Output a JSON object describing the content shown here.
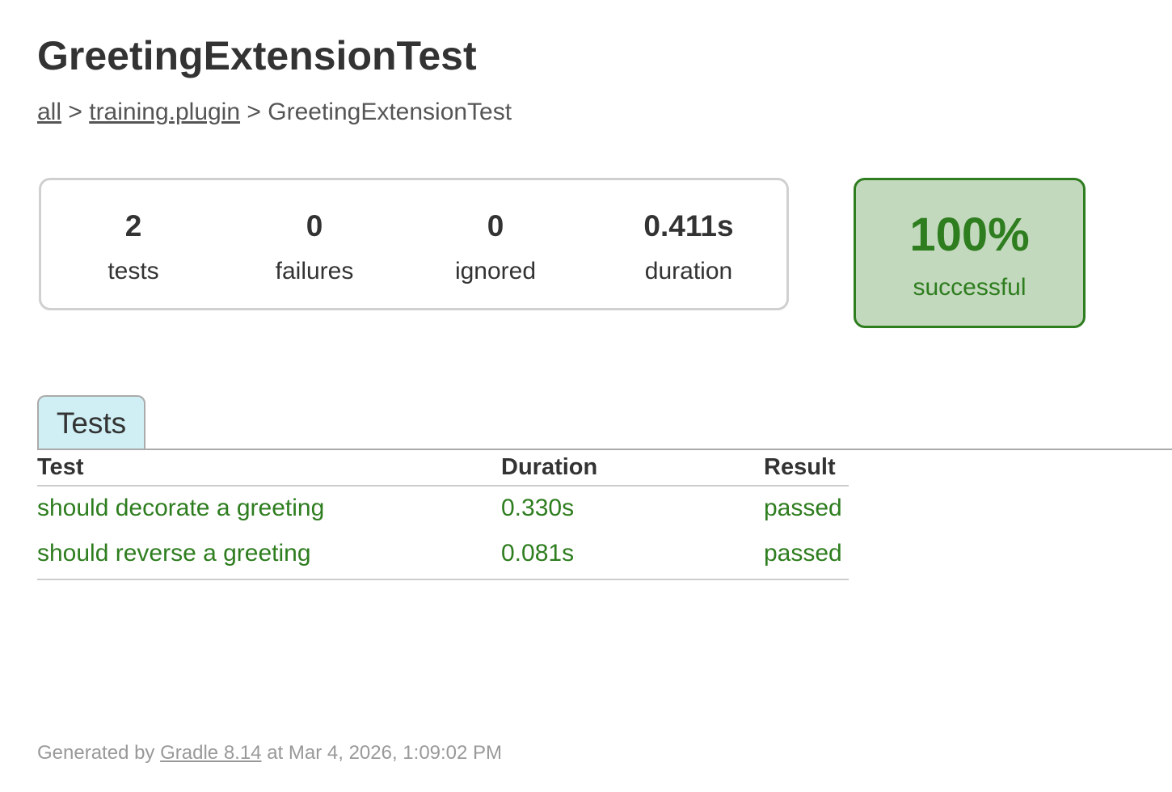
{
  "title": "GreetingExtensionTest",
  "breadcrumb": {
    "items": [
      {
        "label": "all"
      },
      {
        "label": "training.plugin"
      }
    ],
    "current": "GreetingExtensionTest",
    "separator": ">"
  },
  "summary": {
    "tests": {
      "value": "2",
      "label": "tests"
    },
    "failures": {
      "value": "0",
      "label": "failures"
    },
    "ignored": {
      "value": "0",
      "label": "ignored"
    },
    "duration": {
      "value": "0.411s",
      "label": "duration"
    }
  },
  "success": {
    "percent": "100%",
    "label": "successful"
  },
  "tabs": [
    {
      "label": "Tests",
      "active": true
    }
  ],
  "table": {
    "headers": [
      "Test",
      "Duration",
      "Result"
    ],
    "rows": [
      {
        "test": "should decorate a greeting",
        "duration": "0.330s",
        "result": "passed"
      },
      {
        "test": "should reverse a greeting",
        "duration": "0.081s",
        "result": "passed"
      }
    ]
  },
  "footer": {
    "prefix": "Generated by",
    "link": "Gradle 8.14",
    "suffix": "at Mar 4, 2026, 1:09:02 PM"
  },
  "colors": {
    "success": "#2e7d1f",
    "success_bg": "#c3d9bd",
    "tab_bg": "#cfeff4"
  }
}
